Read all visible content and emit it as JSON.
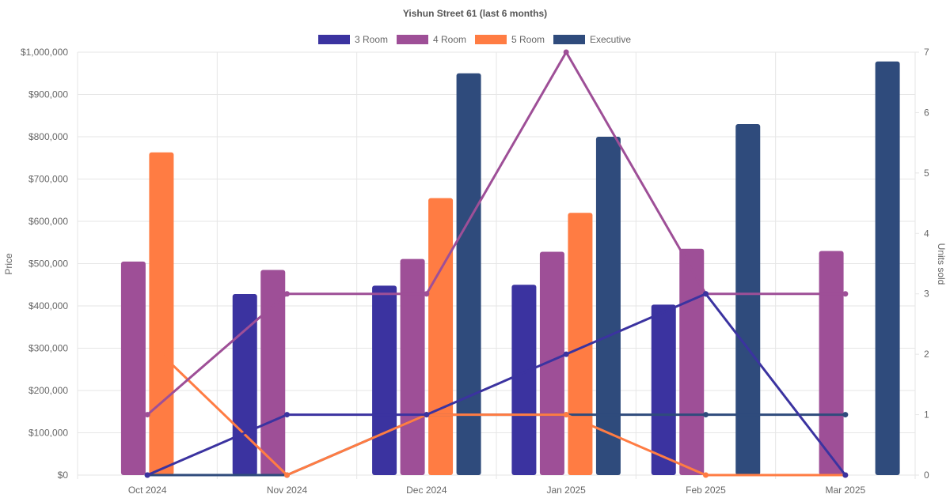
{
  "colors": {
    "three_room": "#3b33a0",
    "four_room": "#9e4f97",
    "five_room": "#ff7c43",
    "executive": "#2f4b7c",
    "grid": "#e6e6e6",
    "text": "#666666",
    "title": "#555555"
  },
  "chart_data": {
    "type": "bar",
    "title": "Yishun Street 61 (last 6 months)",
    "categories": [
      "Oct 2024",
      "Nov 2024",
      "Dec 2024",
      "Jan 2025",
      "Feb 2025",
      "Mar 2025"
    ],
    "ylabel": "Price",
    "y2label": "Units sold",
    "ylim": [
      0,
      1000000
    ],
    "y2lim": [
      0,
      7
    ],
    "yticks": [
      "$0",
      "$100,000",
      "$200,000",
      "$300,000",
      "$400,000",
      "$500,000",
      "$600,000",
      "$700,000",
      "$800,000",
      "$900,000",
      "$1,000,000"
    ],
    "y2ticks": [
      "0",
      "1",
      "2",
      "3",
      "4",
      "5",
      "6",
      "7"
    ],
    "legend_position": "top-center",
    "series": [
      {
        "name": "3 Room",
        "color_key": "three_room",
        "prices": [
          null,
          428000,
          448000,
          450000,
          403000,
          null
        ],
        "units": [
          0,
          1,
          1,
          2,
          3,
          0
        ]
      },
      {
        "name": "4 Room",
        "color_key": "four_room",
        "prices": [
          505000,
          485000,
          511000,
          528000,
          535000,
          530000
        ],
        "units": [
          1,
          3,
          3,
          7,
          3,
          3
        ]
      },
      {
        "name": "5 Room",
        "color_key": "five_room",
        "prices": [
          763000,
          null,
          655000,
          620000,
          null,
          null
        ],
        "units": [
          2,
          0,
          1,
          1,
          0,
          0
        ]
      },
      {
        "name": "Executive",
        "color_key": "executive",
        "prices": [
          null,
          null,
          950000,
          800000,
          830000,
          978000
        ],
        "units": [
          0,
          0,
          1,
          1,
          1,
          1
        ]
      }
    ]
  }
}
